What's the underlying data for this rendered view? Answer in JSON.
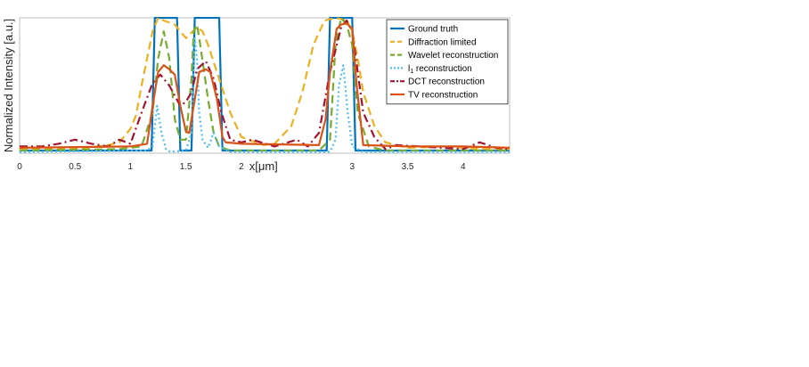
{
  "chart_data": {
    "type": "line",
    "xlabel": "x[μm]",
    "ylabel": "Normalized Intensity [a.u.]",
    "xlim": [
      0,
      4.42
    ],
    "ylim": [
      0,
      1
    ],
    "grid": false,
    "legend_position": "top-right",
    "x_ticks": [
      {
        "value": 0,
        "label": "0"
      },
      {
        "value": 0.5,
        "label": "0.5"
      },
      {
        "value": 1,
        "label": "1"
      },
      {
        "value": 1.5,
        "label": "1.5"
      },
      {
        "value": 2,
        "label": "2"
      },
      {
        "value": 3,
        "label": "3"
      },
      {
        "value": 3.5,
        "label": "3.5"
      },
      {
        "value": 4,
        "label": "4"
      }
    ],
    "series": [
      {
        "name": "Ground truth",
        "color": "#0072BD",
        "style": "solid",
        "x": [
          0,
          1.19,
          1.22,
          1.42,
          1.45,
          1.55,
          1.58,
          1.8,
          1.83,
          2.77,
          2.8,
          3.0,
          3.03,
          4.42
        ],
        "y": [
          0.02,
          0.02,
          1.0,
          1.0,
          0.02,
          0.02,
          1.0,
          1.0,
          0.02,
          0.02,
          1.0,
          1.0,
          0.02,
          0.02
        ]
      },
      {
        "name": "Diffraction limited",
        "color": "#EDB120",
        "style": "dashed",
        "x": [
          0,
          0.3,
          0.6,
          0.8,
          0.9,
          1.0,
          1.05,
          1.1,
          1.2,
          1.25,
          1.3,
          1.4,
          1.45,
          1.5,
          1.6,
          1.65,
          1.7,
          1.8,
          1.9,
          2.0,
          2.2,
          2.3,
          2.45,
          2.55,
          2.65,
          2.75,
          2.85,
          2.95,
          3.0,
          3.05,
          3.1,
          3.2,
          3.3,
          3.5,
          3.8,
          4.0,
          4.2,
          4.42
        ],
        "y": [
          0.03,
          0.03,
          0.04,
          0.06,
          0.08,
          0.18,
          0.28,
          0.5,
          0.9,
          1.0,
          0.98,
          0.95,
          0.9,
          0.85,
          0.93,
          0.9,
          0.8,
          0.55,
          0.3,
          0.12,
          0.06,
          0.07,
          0.2,
          0.45,
          0.8,
          0.98,
          1.0,
          0.98,
          0.9,
          0.7,
          0.45,
          0.2,
          0.08,
          0.04,
          0.05,
          0.04,
          0.03,
          0.03
        ]
      },
      {
        "name": "Wavelet reconstruction",
        "color": "#77AC30",
        "style": "dashed",
        "x": [
          0,
          0.9,
          1.1,
          1.2,
          1.25,
          1.3,
          1.35,
          1.4,
          1.45,
          1.5,
          1.55,
          1.57,
          1.6,
          1.63,
          1.7,
          1.75,
          1.8,
          1.9,
          2.7,
          2.8,
          2.85,
          2.9,
          2.95,
          3.0,
          3.05,
          3.15,
          3.3,
          4.42
        ],
        "y": [
          0.02,
          0.03,
          0.05,
          0.3,
          0.7,
          0.9,
          0.7,
          0.25,
          0.1,
          0.1,
          0.55,
          0.9,
          0.95,
          0.8,
          0.4,
          0.15,
          0.05,
          0.02,
          0.02,
          0.1,
          0.8,
          1.0,
          0.95,
          0.8,
          0.3,
          0.05,
          0.02,
          0.02
        ]
      },
      {
        "name": "l1 reconstruction",
        "legend_sub": "1",
        "legend_prefix": "l",
        "legend_suffix": " reconstruction",
        "color": "#4DBEEE",
        "style": "dotted",
        "x": [
          0,
          1.15,
          1.2,
          1.24,
          1.28,
          1.32,
          1.36,
          1.5,
          1.55,
          1.58,
          1.6,
          1.62,
          1.65,
          1.7,
          1.75,
          1.8,
          1.9,
          2.8,
          2.85,
          2.88,
          2.92,
          2.96,
          3.0,
          3.1,
          4.42
        ],
        "y": [
          0.01,
          0.02,
          0.05,
          0.35,
          0.15,
          0.03,
          0.01,
          0.02,
          0.15,
          0.85,
          0.7,
          0.3,
          0.1,
          0.04,
          0.15,
          0.05,
          0.01,
          0.01,
          0.1,
          0.5,
          0.65,
          0.3,
          0.05,
          0.01,
          0.01
        ]
      },
      {
        "name": "DCT reconstruction",
        "color": "#A2142F",
        "style": "dashdot",
        "x": [
          0,
          0.2,
          0.35,
          0.5,
          0.65,
          0.8,
          0.9,
          1.0,
          1.1,
          1.2,
          1.27,
          1.35,
          1.45,
          1.5,
          1.55,
          1.6,
          1.68,
          1.75,
          1.82,
          1.9,
          2.0,
          2.1,
          2.3,
          2.5,
          2.6,
          2.7,
          2.8,
          2.9,
          2.95,
          3.0,
          3.05,
          3.1,
          3.2,
          3.3,
          3.4,
          3.6,
          3.8,
          4.0,
          4.15,
          4.3,
          4.42
        ],
        "y": [
          0.05,
          0.05,
          0.07,
          0.1,
          0.07,
          0.05,
          0.1,
          0.07,
          0.3,
          0.52,
          0.58,
          0.5,
          0.35,
          0.38,
          0.45,
          0.62,
          0.68,
          0.55,
          0.3,
          0.1,
          0.08,
          0.1,
          0.05,
          0.1,
          0.05,
          0.15,
          0.6,
          0.93,
          0.98,
          0.9,
          0.6,
          0.3,
          0.12,
          0.03,
          0.06,
          0.05,
          0.04,
          0.03,
          0.08,
          0.04,
          0.03
        ]
      },
      {
        "name": "TV reconstruction",
        "color": "#D95319",
        "style": "solid",
        "x": [
          0,
          1.0,
          1.15,
          1.2,
          1.25,
          1.3,
          1.35,
          1.4,
          1.45,
          1.5,
          1.53,
          1.57,
          1.62,
          1.68,
          1.72,
          1.78,
          1.83,
          1.86,
          2.0,
          2.7,
          2.76,
          2.8,
          2.86,
          2.9,
          2.95,
          3.0,
          3.04,
          3.1,
          3.5,
          4.0,
          4.42
        ],
        "y": [
          0.04,
          0.05,
          0.07,
          0.35,
          0.6,
          0.65,
          0.62,
          0.58,
          0.35,
          0.16,
          0.15,
          0.35,
          0.6,
          0.62,
          0.6,
          0.4,
          0.12,
          0.08,
          0.07,
          0.06,
          0.25,
          0.6,
          0.92,
          0.95,
          0.96,
          0.92,
          0.5,
          0.06,
          0.05,
          0.05,
          0.04
        ]
      }
    ]
  }
}
